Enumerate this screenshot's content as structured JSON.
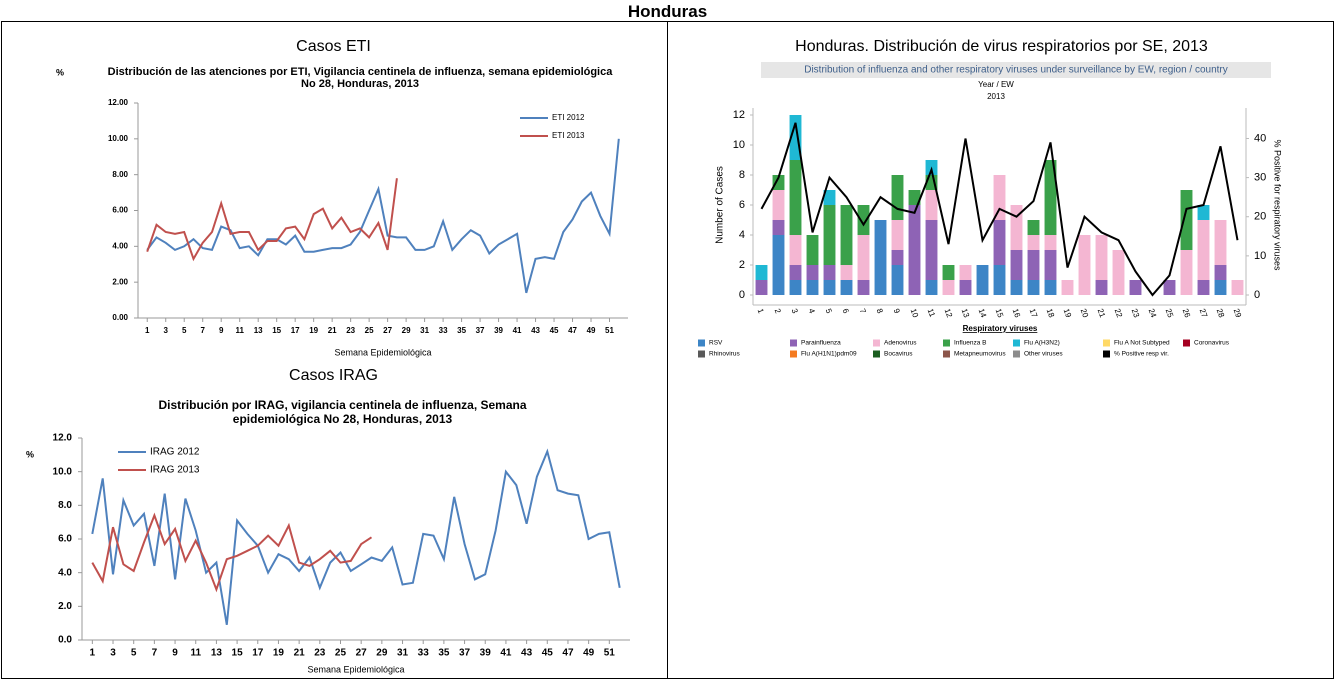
{
  "page_title": "Honduras",
  "sections": [
    "Casos ETI",
    "Honduras. Distribución de virus respiratorios por SE, 2013",
    "Casos IRAG"
  ],
  "chart_data": [
    {
      "type": "line",
      "title": "Distribución de las atenciones por ETI, Vigilancia centinela de influenza, semana epidemiológica No 28, Honduras, 2013",
      "ylabel": "%",
      "xlabel": "Semana Epidemiológica",
      "legend": "upper right",
      "x": [
        1,
        2,
        3,
        4,
        5,
        6,
        7,
        8,
        9,
        10,
        11,
        12,
        13,
        14,
        15,
        16,
        17,
        18,
        19,
        20,
        21,
        22,
        23,
        24,
        25,
        26,
        27,
        28,
        29,
        30,
        31,
        32,
        33,
        34,
        35,
        36,
        37,
        38,
        39,
        40,
        41,
        42,
        43,
        44,
        45,
        46,
        47,
        48,
        49,
        50,
        51,
        52
      ],
      "xlim": [
        0,
        53
      ],
      "xticks": [
        1,
        3,
        5,
        7,
        9,
        11,
        13,
        15,
        17,
        19,
        21,
        23,
        25,
        27,
        29,
        31,
        33,
        35,
        37,
        39,
        41,
        43,
        45,
        47,
        49,
        51
      ],
      "ylim": [
        0,
        12
      ],
      "yticks": [
        {
          "value": 0,
          "label": "0.00"
        },
        {
          "value": 2,
          "label": "2.00"
        },
        {
          "value": 4,
          "label": "4.00"
        },
        {
          "value": 6,
          "label": "6.00"
        },
        {
          "value": 8,
          "label": "8.00"
        },
        {
          "value": 10,
          "label": "10.00"
        },
        {
          "value": 12,
          "label": "12.00"
        }
      ],
      "series": [
        {
          "name": "ETI 2012",
          "color": "#4f81bd",
          "values": [
            3.8,
            4.5,
            4.2,
            3.8,
            4.0,
            4.4,
            3.9,
            3.8,
            5.1,
            4.9,
            3.9,
            4.0,
            3.5,
            4.4,
            4.4,
            4.1,
            4.6,
            3.7,
            3.7,
            3.8,
            3.9,
            3.9,
            4.1,
            4.8,
            6.0,
            7.2,
            4.6,
            4.5,
            4.5,
            3.8,
            3.8,
            4.0,
            5.4,
            3.8,
            4.4,
            4.9,
            4.6,
            3.6,
            4.1,
            4.4,
            4.7,
            1.4,
            3.3,
            3.4,
            3.3,
            4.8,
            5.5,
            6.5,
            7.0,
            5.7,
            4.7,
            10.0
          ]
        },
        {
          "name": "ETI 2013",
          "color": "#c0504d",
          "values": [
            3.7,
            5.2,
            4.8,
            4.7,
            4.8,
            3.3,
            4.2,
            4.8,
            6.4,
            4.7,
            4.8,
            4.8,
            3.8,
            4.3,
            4.3,
            5.0,
            5.1,
            4.4,
            5.8,
            6.1,
            5.0,
            5.6,
            4.8,
            5.0,
            4.5,
            5.3,
            3.8,
            7.8,
            null,
            null,
            null,
            null,
            null,
            null,
            null,
            null,
            null,
            null,
            null,
            null,
            null,
            null,
            null,
            null,
            null,
            null,
            null,
            null,
            null,
            null,
            null,
            null
          ]
        }
      ]
    },
    {
      "type": "line",
      "title": "Distribución  por IRAG, vigilancia centinela de influenza, Semana epidemiológica No 28, Honduras, 2013",
      "ylabel": "%",
      "xlabel": "Semana Epidemiológica",
      "legend": "upper left",
      "x": [
        1,
        2,
        3,
        4,
        5,
        6,
        7,
        8,
        9,
        10,
        11,
        12,
        13,
        14,
        15,
        16,
        17,
        18,
        19,
        20,
        21,
        22,
        23,
        24,
        25,
        26,
        27,
        28,
        29,
        30,
        31,
        32,
        33,
        34,
        35,
        36,
        37,
        38,
        39,
        40,
        41,
        42,
        43,
        44,
        45,
        46,
        47,
        48,
        49,
        50,
        51,
        52
      ],
      "xlim": [
        0,
        53
      ],
      "xticks": [
        1,
        3,
        5,
        7,
        9,
        11,
        13,
        15,
        17,
        19,
        21,
        23,
        25,
        27,
        29,
        31,
        33,
        35,
        37,
        39,
        41,
        43,
        45,
        47,
        49,
        51
      ],
      "ylim": [
        0,
        12
      ],
      "yticks": [
        {
          "value": 0,
          "label": "0.0"
        },
        {
          "value": 2,
          "label": "2.0"
        },
        {
          "value": 4,
          "label": "4.0"
        },
        {
          "value": 6,
          "label": "6.0"
        },
        {
          "value": 8,
          "label": "8.0"
        },
        {
          "value": 10,
          "label": "10.0"
        },
        {
          "value": 12,
          "label": "12.0"
        }
      ],
      "series": [
        {
          "name": "IRAG 2012",
          "color": "#4f81bd",
          "values": [
            6.3,
            9.6,
            3.9,
            8.3,
            6.8,
            7.5,
            4.4,
            8.7,
            3.6,
            8.4,
            6.5,
            4.0,
            4.6,
            0.9,
            7.1,
            6.3,
            5.6,
            4.0,
            5.1,
            4.8,
            4.1,
            4.9,
            3.1,
            4.6,
            5.2,
            4.1,
            4.5,
            4.9,
            4.7,
            5.5,
            3.3,
            3.4,
            6.3,
            6.2,
            4.8,
            8.5,
            5.7,
            3.6,
            3.9,
            6.5,
            10.0,
            9.2,
            6.9,
            9.7,
            11.2,
            8.9,
            8.7,
            8.6,
            6.0,
            6.3,
            6.4,
            3.1
          ]
        },
        {
          "name": "IRAG 2013",
          "color": "#c0504d",
          "values": [
            4.6,
            3.5,
            6.7,
            4.5,
            4.1,
            5.8,
            7.4,
            5.7,
            6.6,
            4.7,
            5.9,
            4.6,
            3.0,
            4.8,
            5.0,
            5.3,
            5.6,
            6.2,
            5.6,
            6.8,
            4.6,
            4.4,
            4.8,
            5.3,
            4.6,
            4.7,
            5.7,
            6.1,
            null,
            null,
            null,
            null,
            null,
            null,
            null,
            null,
            null,
            null,
            null,
            null,
            null,
            null,
            null,
            null,
            null,
            null,
            null,
            null,
            null,
            null,
            null,
            null
          ]
        }
      ]
    },
    {
      "type": "bar",
      "stacked": true,
      "title": "Distribution of influenza and other respiratory viruses under surveillance by EW, region / country",
      "annotations": [
        "Year / EW",
        "2013"
      ],
      "ylabel": "Number of Cases",
      "y2label": "% Positive for respiratory viruses",
      "xlabel": "Respiratory viruses",
      "legend": "bottom",
      "categories": [
        "1",
        "2",
        "3",
        "4",
        "5",
        "6",
        "7",
        "8",
        "9",
        "10",
        "11",
        "12",
        "13",
        "14",
        "15",
        "16",
        "17",
        "18",
        "19",
        "20",
        "21",
        "22",
        "23",
        "24",
        "25",
        "26",
        "27",
        "28",
        "29"
      ],
      "ylim": [
        0,
        12
      ],
      "yticks": [
        0,
        2,
        4,
        6,
        8,
        10,
        12
      ],
      "y2lim": [
        0,
        46
      ],
      "y2ticks": [
        0,
        10,
        20,
        30,
        40
      ],
      "series": [
        {
          "name": "RSV",
          "color": "#3d85c6",
          "values": [
            0,
            4,
            1,
            1,
            1,
            1,
            0,
            5,
            2,
            0,
            1,
            0,
            0,
            2,
            2,
            1,
            1,
            1,
            0,
            0,
            0,
            0,
            0,
            0,
            0,
            0,
            0,
            1,
            0
          ]
        },
        {
          "name": "Parainfluenza",
          "color": "#8e63b5",
          "values": [
            1,
            1,
            1,
            1,
            1,
            0,
            1,
            0,
            1,
            6,
            4,
            0,
            1,
            0,
            3,
            2,
            2,
            2,
            0,
            0,
            1,
            0,
            1,
            0,
            1,
            0,
            1,
            1,
            0
          ]
        },
        {
          "name": "Adenovirus",
          "color": "#f4b6d2",
          "values": [
            0,
            2,
            2,
            0,
            0,
            1,
            3,
            0,
            2,
            0,
            2,
            1,
            1,
            0,
            3,
            3,
            1,
            1,
            1,
            4,
            3,
            3,
            0,
            0,
            0,
            3,
            4,
            3,
            1
          ]
        },
        {
          "name": "Influenza B",
          "color": "#3aa14a",
          "values": [
            0,
            1,
            5,
            2,
            4,
            4,
            2,
            0,
            3,
            1,
            1,
            1,
            0,
            0,
            0,
            0,
            1,
            5,
            0,
            0,
            0,
            0,
            0,
            0,
            0,
            4,
            0,
            0,
            0
          ]
        },
        {
          "name": "Flu A(H3N2)",
          "color": "#1fb8d4",
          "values": [
            1,
            0,
            3,
            0,
            1,
            0,
            0,
            0,
            0,
            0,
            1,
            0,
            0,
            0,
            0,
            0,
            0,
            0,
            0,
            0,
            0,
            0,
            0,
            0,
            0,
            0,
            1,
            0,
            0
          ]
        },
        {
          "name": "Flu A Not Subtyped",
          "color": "#ffd966",
          "values": [
            0,
            0,
            0,
            0,
            0,
            0,
            0,
            0,
            0,
            0,
            0,
            0,
            0,
            0,
            0,
            0,
            0,
            0,
            0,
            0,
            0,
            0,
            0,
            0,
            0,
            0,
            0,
            0,
            0
          ]
        },
        {
          "name": "Coronavirus",
          "color": "#a50021",
          "values": [
            0,
            0,
            0,
            0,
            0,
            0,
            0,
            0,
            0,
            0,
            0,
            0,
            0,
            0,
            0,
            0,
            0,
            0,
            0,
            0,
            0,
            0,
            0,
            0,
            0,
            0,
            0,
            0,
            0
          ]
        },
        {
          "name": "Rhinovirus",
          "color": "#595959",
          "values": [
            0,
            0,
            0,
            0,
            0,
            0,
            0,
            0,
            0,
            0,
            0,
            0,
            0,
            0,
            0,
            0,
            0,
            0,
            0,
            0,
            0,
            0,
            0,
            0,
            0,
            0,
            0,
            0,
            0
          ]
        },
        {
          "name": "Flu A(H1N1)pdm09",
          "color": "#f47a20",
          "values": [
            0,
            0,
            0,
            0,
            0,
            0,
            0,
            0,
            0,
            0,
            0,
            0,
            0,
            0,
            0,
            0,
            0,
            0,
            0,
            0,
            0,
            0,
            0,
            0,
            0,
            0,
            0,
            0,
            0
          ]
        },
        {
          "name": "Bocavirus",
          "color": "#1b5e20",
          "values": [
            0,
            0,
            0,
            0,
            0,
            0,
            0,
            0,
            0,
            0,
            0,
            0,
            0,
            0,
            0,
            0,
            0,
            0,
            0,
            0,
            0,
            0,
            0,
            0,
            0,
            0,
            0,
            0,
            0
          ]
        },
        {
          "name": "Metapneumovirus",
          "color": "#8c564b",
          "values": [
            0,
            0,
            0,
            0,
            0,
            0,
            0,
            0,
            0,
            0,
            0,
            0,
            0,
            0,
            0,
            0,
            0,
            0,
            0,
            0,
            0,
            0,
            0,
            0,
            0,
            0,
            0,
            0,
            0
          ]
        },
        {
          "name": "Other viruses",
          "color": "#8c8c8c",
          "values": [
            0,
            0,
            0,
            0,
            0,
            0,
            0,
            0,
            0,
            0,
            0,
            0,
            0,
            0,
            0,
            0,
            0,
            0,
            0,
            0,
            0,
            0,
            0,
            0,
            0,
            0,
            0,
            0,
            0
          ]
        },
        {
          "name": "% Positive resp vir.",
          "color": "#000000",
          "axis": "y2",
          "values": [
            22,
            30,
            44,
            16,
            30,
            25,
            18,
            25,
            22,
            21,
            32,
            13,
            40,
            14,
            22,
            20,
            24,
            39,
            7,
            20,
            16,
            14,
            6,
            0,
            5,
            22,
            23,
            38,
            14
          ]
        }
      ]
    }
  ]
}
